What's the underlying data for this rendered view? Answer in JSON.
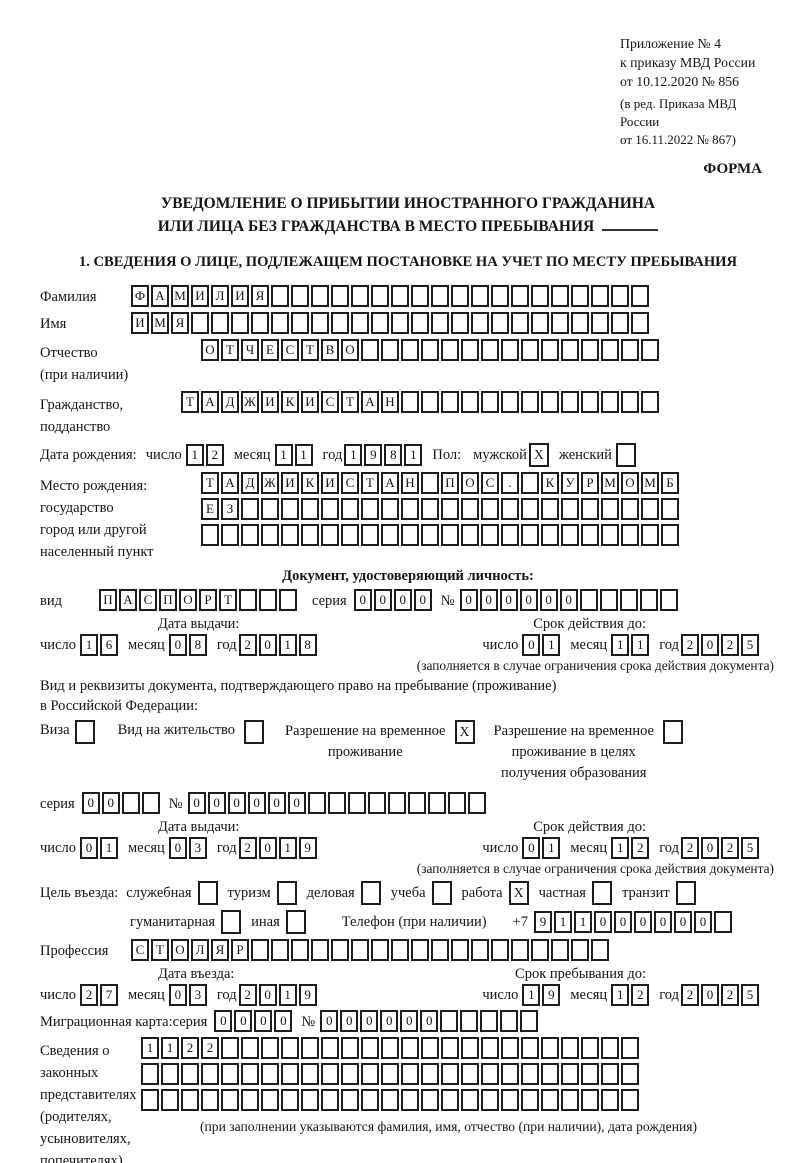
{
  "doc": {
    "appendix_lines": [
      "Приложение № 4",
      "к приказу МВД России",
      "от 10.12.2020 № 856"
    ],
    "appendix_note_lines": [
      "(в ред. Приказа МВД России",
      "от 16.11.2022 № 867)"
    ],
    "forma_label": "ФОРМА",
    "title_line1": "УВЕДОМЛЕНИЕ О ПРИБЫТИИ ИНОСТРАННОГО ГРАЖДАНИНА",
    "title_line2": "ИЛИ ЛИЦА БЕЗ ГРАЖДАНСТВА В МЕСТО ПРЕБЫВАНИЯ",
    "section1_title": "1. СВЕДЕНИЯ О ЛИЦЕ, ПОДЛЕЖАЩЕМ ПОСТАНОВКЕ НА УЧЕТ ПО МЕСТУ ПРЕБЫВАНИЯ"
  },
  "date_labels": {
    "day": "число",
    "month": "месяц",
    "year": "год"
  },
  "person": {
    "surname": {
      "label": "Фамилия",
      "boxes": {
        "chars": "ФАМИЛИЯ",
        "total": 26
      }
    },
    "given_name": {
      "label": "Имя",
      "boxes": {
        "chars": "ИМЯ",
        "total": 26
      }
    },
    "patronymic": {
      "label_line1": "Отчество",
      "label_line2": "(при наличии)",
      "boxes": {
        "chars": "ОТЧЕСТВО",
        "total": 23
      }
    },
    "citizenship": {
      "label_line1": "Гражданство,",
      "label_line2": "подданство",
      "boxes": {
        "chars": "ТАДЖИКИСТАН",
        "total": 24
      }
    },
    "birth_date": {
      "label": "Дата рождения:",
      "day": "12",
      "month": "11",
      "year": "1981"
    },
    "sex": {
      "label": "Пол:",
      "male_label": "мужской",
      "male_box": "X",
      "female_label": "женский",
      "female_box": "_"
    },
    "birth_place": {
      "label_lines": [
        "Место рождения:",
        "государство",
        "город или другой",
        "населенный пункт"
      ],
      "rows": [
        {
          "chars": "ТАДЖИКИСТАН_ПОС._КУРМОМБ",
          "total": 24
        },
        {
          "chars": "ЕЗ",
          "total": 24
        },
        {
          "chars": "",
          "total": 24
        }
      ]
    }
  },
  "identity_doc": {
    "heading": "Документ, удостоверяющий личность:",
    "kind_label": "вид",
    "kind_boxes": {
      "chars": "ПАСПОРТ",
      "total": 10
    },
    "series_label": "серия",
    "series_boxes": {
      "chars": "0000",
      "total": 4
    },
    "number_label": "№",
    "number_boxes": {
      "chars": "000000",
      "total": 11
    },
    "issue": {
      "caption": "Дата выдачи:",
      "day": "16",
      "month": "08",
      "year": "2018"
    },
    "valid": {
      "caption": "Срок действия до:",
      "day": "01",
      "month": "11",
      "year": "2025"
    },
    "validity_note": "(заполняется в случае ограничения срока действия документа)"
  },
  "residence_doc": {
    "intro_line1": "Вид и реквизиты документа, подтверждающего право на пребывание (проживание)",
    "intro_line2": "в Российской Федерации:",
    "options": [
      {
        "lines": [
          "Виза"
        ],
        "box": "_"
      },
      {
        "lines": [
          "Вид на жительство"
        ],
        "box": "_"
      },
      {
        "lines": [
          "Разрешение на временное",
          "проживание"
        ],
        "box": "X"
      },
      {
        "lines": [
          "Разрешение на временное",
          "проживание в целях",
          "получения образования"
        ],
        "box": "_"
      }
    ],
    "series_label": "серия",
    "series_boxes": {
      "chars": "00",
      "total": 4
    },
    "number_label": "№",
    "number_boxes": {
      "chars": "000000",
      "total": 15
    },
    "issue": {
      "caption": "Дата выдачи:",
      "day": "01",
      "month": "03",
      "year": "2019"
    },
    "valid": {
      "caption": "Срок действия до:",
      "day": "01",
      "month": "12",
      "year": "2025"
    },
    "validity_note": "(заполняется в случае ограничения срока действия документа)"
  },
  "visit": {
    "purpose_label": "Цель въезда:",
    "purposes_row1": [
      {
        "label": "служебная",
        "box": "_"
      },
      {
        "label": "туризм",
        "box": "_"
      },
      {
        "label": "деловая",
        "box": "_"
      },
      {
        "label": "учеба",
        "box": "_"
      },
      {
        "label": "работа",
        "box": "X"
      },
      {
        "label": "частная",
        "box": "_"
      },
      {
        "label": "транзит",
        "box": "_"
      }
    ],
    "purposes_row2": [
      {
        "label": "гуманитарная",
        "box": "_"
      },
      {
        "label": "иная",
        "box": "_"
      }
    ],
    "phone_label": "Телефон (при наличии)",
    "phone_prefix": "+7",
    "phone_boxes": {
      "chars": "911000000",
      "total": 10
    },
    "profession_label": "Профессия",
    "profession_boxes": {
      "chars": "СТОЛЯР",
      "total": 24
    },
    "entry": {
      "caption": "Дата въезда:",
      "day": "27",
      "month": "03",
      "year": "2019"
    },
    "stay": {
      "caption": "Срок пребывания до:",
      "day": "19",
      "month": "12",
      "year": "2025"
    },
    "migration_card_label": "Миграционная карта:",
    "mc_series_label": "серия",
    "mc_series_boxes": {
      "chars": "0000",
      "total": 4
    },
    "mc_number_label": "№",
    "mc_number_boxes": {
      "chars": "000000",
      "total": 11
    }
  },
  "representatives": {
    "label_lines": [
      "Сведения о",
      "законных",
      "представителях",
      "(родителях,",
      "усыновителях,",
      "попечителях)"
    ],
    "rows": [
      {
        "chars": "1122",
        "total": 25
      },
      {
        "chars": "",
        "total": 25
      },
      {
        "chars": "",
        "total": 25
      }
    ],
    "note": "(при заполнении указываются фамилия, имя, отчество (при наличии), дата рождения)"
  }
}
